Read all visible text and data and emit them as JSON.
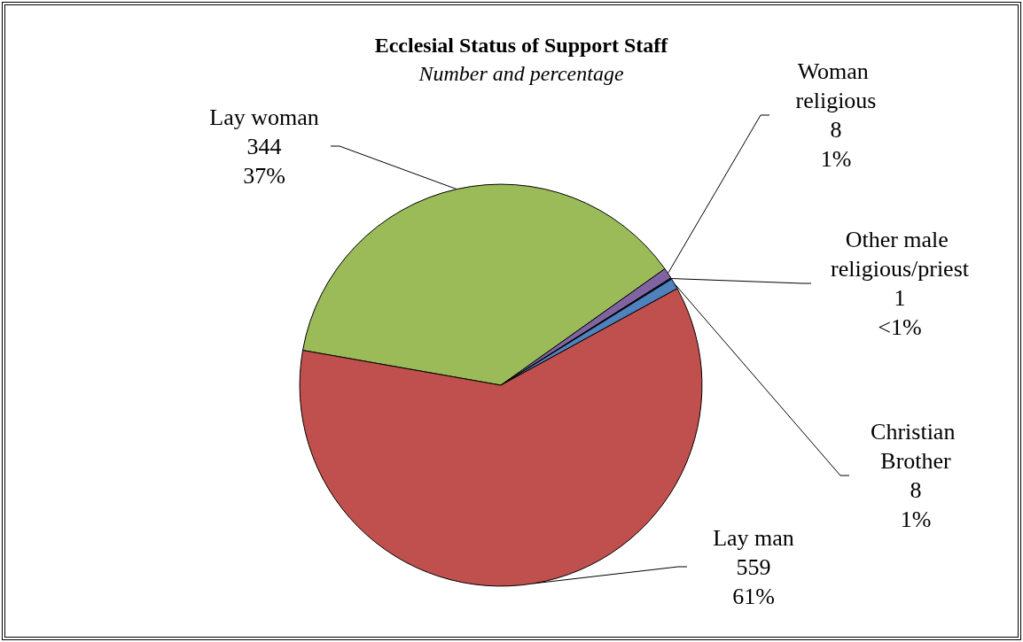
{
  "chart_data": {
    "type": "pie",
    "title": "Ecclesial Status of Support Staff",
    "subtitle": "Number and percentage",
    "categories": [
      "Lay woman",
      "Woman religious",
      "Other male religious/priest",
      "Christian Brother",
      "Lay man"
    ],
    "values": [
      344,
      8,
      1,
      8,
      559
    ],
    "colors": [
      "#9bbb59",
      "#8064a2",
      "#1f1f3f",
      "#4f81bd",
      "#c0504d"
    ],
    "value_labels": [
      "344\n37%",
      "8\n1%",
      "1\n<1%",
      "8\n1%",
      "559\n61%"
    ],
    "legend": false
  }
}
